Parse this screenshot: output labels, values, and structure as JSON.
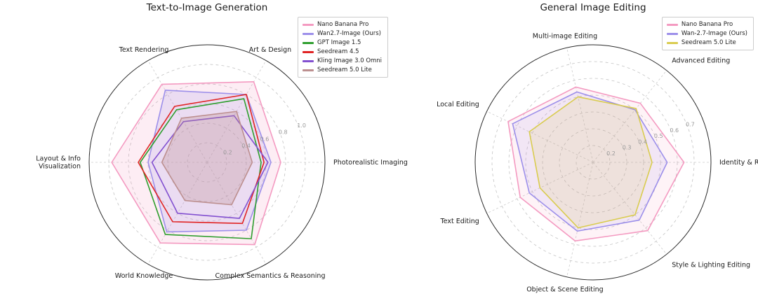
{
  "page": {
    "background": "#ffffff"
  },
  "chart_data": [
    {
      "type": "radar",
      "title": "Text-to-Image Generation",
      "axes": [
        "Photorealistic Imaging",
        "Art & Design",
        "Text Rendering",
        "Layout & Info\nVisualization",
        "World Knowledge",
        "Complex Semantics & Reasoning"
      ],
      "r_min": 0,
      "r_max": 1.2,
      "ticks": [
        0.2,
        0.4,
        0.6,
        0.8,
        1.0
      ],
      "tick_label_angle_deg": 20,
      "grid": true,
      "legend_position": "upper right",
      "series": [
        {
          "name": "Nano Banana Pro",
          "color": "#F49AC1",
          "fill_opacity": 0.18,
          "values": [
            0.75,
            0.95,
            0.92,
            0.97,
            0.95,
            0.97
          ]
        },
        {
          "name": "Wan2.7-Image (Ours)",
          "color": "#9C8FEA",
          "fill_opacity": 0.18,
          "values": [
            0.65,
            0.8,
            0.85,
            0.6,
            0.82,
            0.8
          ]
        },
        {
          "name": "GPT Image 1.5",
          "color": "#2E9E2E",
          "fill_opacity": 0.0,
          "values": [
            0.55,
            0.75,
            0.62,
            0.68,
            0.85,
            0.9
          ]
        },
        {
          "name": "Seedream 4.5",
          "color": "#E02424",
          "fill_opacity": 0.0,
          "values": [
            0.58,
            0.8,
            0.66,
            0.7,
            0.7,
            0.72
          ]
        },
        {
          "name": "Kling Image 3.0 Omni",
          "color": "#8250D0",
          "fill_opacity": 0.0,
          "values": [
            0.62,
            0.55,
            0.48,
            0.56,
            0.6,
            0.66
          ]
        },
        {
          "name": "Seedream 5.0 Lite",
          "color": "#BC8F8F",
          "fill_opacity": 0.3,
          "values": [
            0.46,
            0.6,
            0.52,
            0.46,
            0.45,
            0.5
          ]
        }
      ]
    },
    {
      "type": "radar",
      "title": "General Image Editing",
      "axes": [
        "Identity & Reference",
        "Advanced Editing",
        "Multi-image Editing",
        "Local Editing",
        "Text Editing",
        "Object & Scene Editing",
        "Style & Lighting Editing"
      ],
      "r_min": 0.1,
      "r_max": 0.8,
      "ticks": [
        0.2,
        0.3,
        0.4,
        0.5,
        0.6,
        0.7
      ],
      "tick_label_angle_deg": 20,
      "grid": true,
      "legend_position": "upper right",
      "series": [
        {
          "name": "Nano Banana Pro",
          "color": "#F49AC1",
          "fill_opacity": 0.12,
          "values": [
            0.64,
            0.55,
            0.56,
            0.66,
            0.58,
            0.58,
            0.62
          ]
        },
        {
          "name": "Wan-2.7-Image (Ours)",
          "color": "#9C8FEA",
          "fill_opacity": 0.12,
          "values": [
            0.54,
            0.5,
            0.53,
            0.63,
            0.52,
            0.52,
            0.54
          ]
        },
        {
          "name": "Seedream 5.0 Lite",
          "color": "#D9CC4F",
          "fill_opacity": 0.15,
          "values": [
            0.45,
            0.51,
            0.5,
            0.52,
            0.45,
            0.5,
            0.5
          ]
        }
      ]
    }
  ]
}
